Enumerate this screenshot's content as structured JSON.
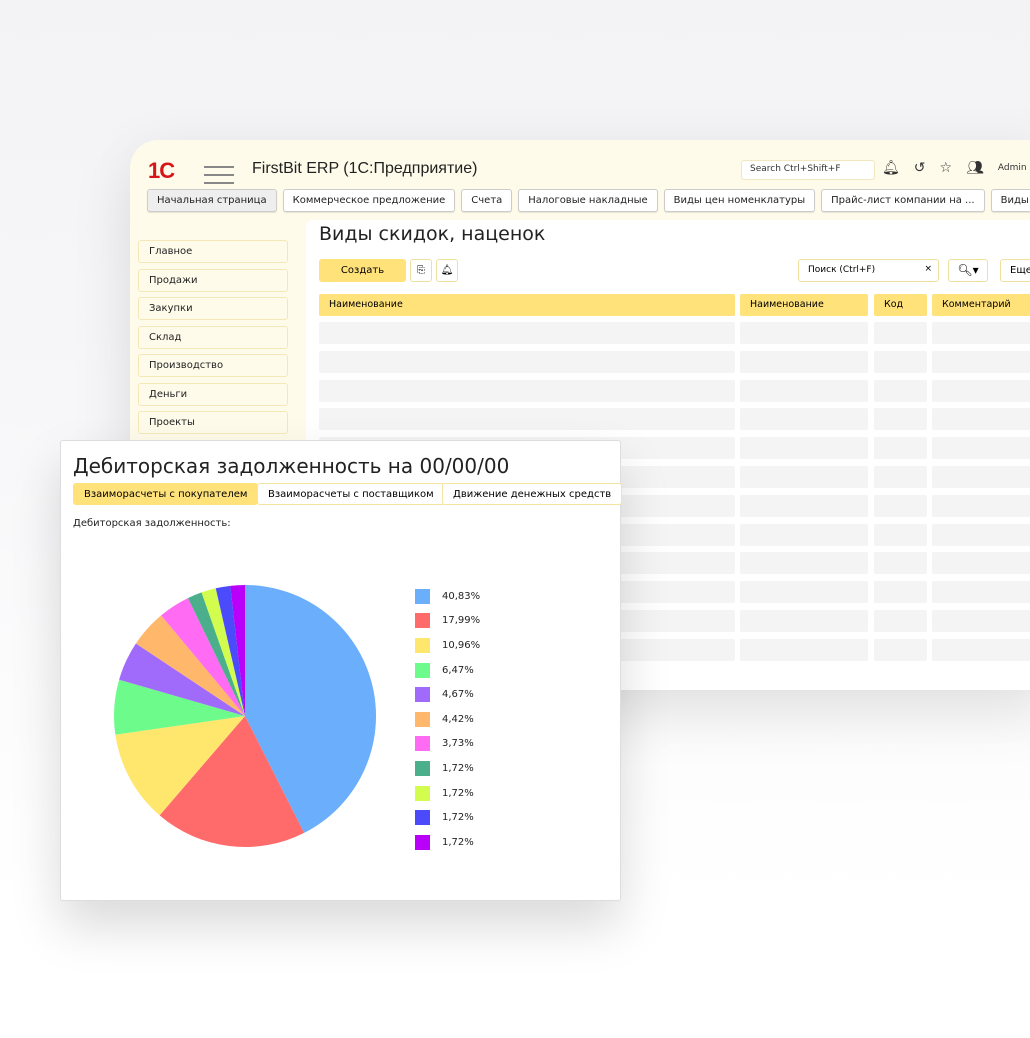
{
  "app": {
    "logo": "1С",
    "title": "FirstBit ERP (1С:Предприятие)",
    "search": "Search Ctrl+Shift+F",
    "user": "Admin"
  },
  "tabs": [
    "Начальная страница",
    "Коммерческое предложение",
    "Счета",
    "Налоговые накладные",
    "Виды цен номенклатуры",
    "Прайс-лист компании на ...",
    "Виды скидо"
  ],
  "sidebar": [
    "Главное",
    "Продажи",
    "Закупки",
    "Склад",
    "Производство",
    "Деньги",
    "Проекты"
  ],
  "list": {
    "title": "Виды скидок, наценок",
    "create": "Создать",
    "search": "Поиск (Ctrl+F)",
    "clear": "×",
    "more": "Еще",
    "columns": [
      "Наименование",
      "Наименование",
      "Код",
      "Комментарий"
    ],
    "row_count": 12
  },
  "report": {
    "title": "Дебиторская задолженность на 00/00/00",
    "tabs": [
      "Взаиморасчеты с покупателем",
      "Взаиморасчеты с поставщиком",
      "Движение денежных средств"
    ],
    "active_tab": 0,
    "label": "Дебиторская задолженность:"
  },
  "chart_data": {
    "type": "pie",
    "start": "top",
    "direction": "clockwise",
    "legend": "right",
    "labels": [
      "40,83%",
      "17,99%",
      "10,96%",
      "6,47%",
      "4,67%",
      "4,42%",
      "3,73%",
      "1,72%",
      "1,72%",
      "1,72%",
      "1,72%"
    ],
    "values": [
      40.83,
      17.99,
      10.96,
      6.47,
      4.67,
      4.42,
      3.73,
      1.72,
      1.72,
      1.72,
      1.72
    ],
    "colors": [
      "#6aaefc",
      "#ff6b6b",
      "#ffe66d",
      "#6dfb8c",
      "#a06bfb",
      "#ffb86b",
      "#ff6bf2",
      "#4caf8c",
      "#d2fd4e",
      "#4b4bfb",
      "#b900f9"
    ]
  }
}
